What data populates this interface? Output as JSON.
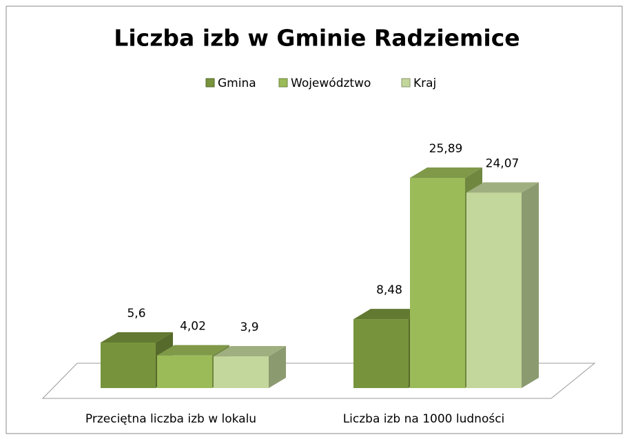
{
  "chart_data": {
    "type": "bar3d",
    "title": "Liczba izb w Gminie Radziemice",
    "categories": [
      "Przeciętna liczba izb w lokalu",
      "Liczba izb na 1000 ludności"
    ],
    "series": [
      {
        "name": "Gmina",
        "color": "#77933c",
        "values": [
          5.6,
          8.48
        ],
        "value_labels": [
          "5,6",
          "8,48"
        ]
      },
      {
        "name": "Województwo",
        "color": "#9bbb59",
        "values": [
          4.02,
          25.89
        ],
        "value_labels": [
          "4,02",
          "25,89"
        ]
      },
      {
        "name": "Kraj",
        "color": "#c3d69b",
        "values": [
          3.9,
          24.07
        ],
        "value_labels": [
          "3,9",
          "24,07"
        ]
      }
    ],
    "legend": "top"
  }
}
